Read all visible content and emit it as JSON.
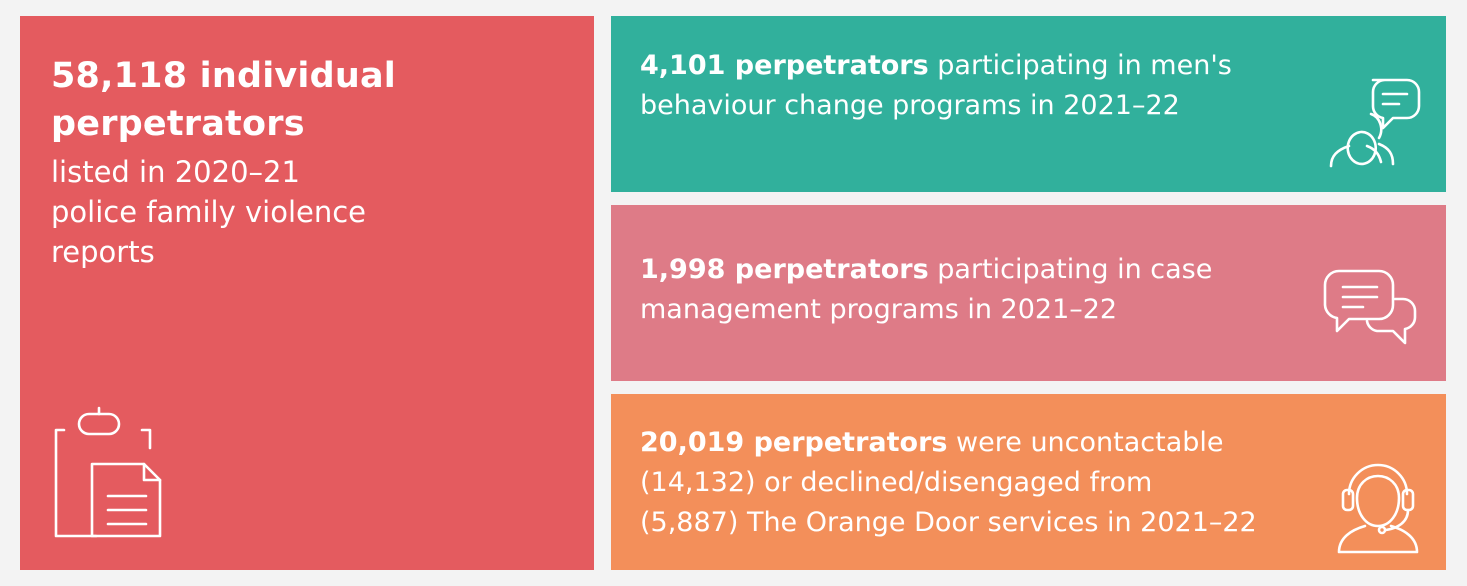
{
  "main": {
    "headline_line1": "58,118 individual",
    "headline_line2": "perpetrators",
    "sub_line1": "listed in 2020–21",
    "sub_line2": "police family violence",
    "sub_line3": "reports",
    "icon": "clipboard-document-icon",
    "color": "#e45b5f"
  },
  "stats": [
    {
      "bold": "4,101 perpetrators",
      "line1_rest": " participating in men's",
      "line2": "behaviour change programs in 2021–22",
      "icon": "people-speech-icon",
      "color": "#31b09c"
    },
    {
      "bold": "1,998 perpetrators",
      "line1_rest": " participating in case",
      "line2": "management programs in 2021–22",
      "icon": "chat-bubbles-icon",
      "color": "#de7b87"
    },
    {
      "bold": "20,019 perpetrators",
      "line1_rest": " were uncontactable",
      "line2": "(14,132) or declined/disengaged from",
      "line3": "(5,887) The Orange Door services in 2021–22",
      "icon": "headset-operator-icon",
      "color": "#f38f5a"
    }
  ]
}
